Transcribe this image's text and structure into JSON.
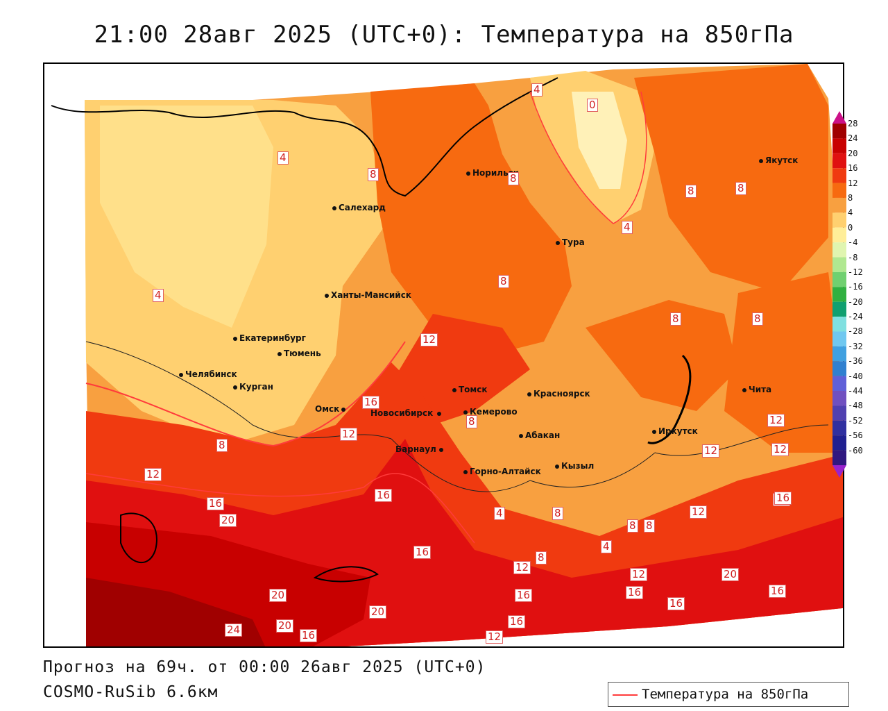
{
  "title": "21:00 28авг 2025 (UTC+0): Температура на 850гПа",
  "footer": {
    "forecast": "Прогноз на 69ч. от 00:00 26авг 2025 (UTC+0)",
    "model": "COSMO-RuSib 6.6км"
  },
  "legend": {
    "label": "Температура на 850гПа",
    "line_color": "#ff3b3b"
  },
  "colorbar": {
    "ticks": [
      "28",
      "24",
      "20",
      "16",
      "12",
      "8",
      "4",
      "0",
      "-4",
      "-8",
      "-12",
      "-16",
      "-20",
      "-24",
      "-28",
      "-32",
      "-36",
      "-40",
      "-44",
      "-48",
      "-52",
      "-56",
      "-60"
    ],
    "colors": [
      "#a00000",
      "#c80000",
      "#e01010",
      "#f03a10",
      "#f76a10",
      "#f8a040",
      "#ffd070",
      "#ffee99",
      "#e0f5b0",
      "#b0e890",
      "#70d070",
      "#30b040",
      "#10a070",
      "#80e0e0",
      "#70c8f0",
      "#40a0e0",
      "#3080d0",
      "#6060d8",
      "#7050c0",
      "#5040b0",
      "#3030a0",
      "#202090",
      "#301880"
    ],
    "top_arrow": "#cc1188",
    "bottom_arrow": "#9922cc"
  },
  "cities": [
    {
      "name": "Норильск"
    },
    {
      "name": "Якутск"
    },
    {
      "name": "Салехард"
    },
    {
      "name": "Тура"
    },
    {
      "name": "Ханты-Мансийск"
    },
    {
      "name": "Екатеринбург"
    },
    {
      "name": "Тюмень"
    },
    {
      "name": "Челябинск"
    },
    {
      "name": "Курган"
    },
    {
      "name": "Омск"
    },
    {
      "name": "Новосибирск"
    },
    {
      "name": "Томск"
    },
    {
      "name": "Кемерово"
    },
    {
      "name": "Красноярск"
    },
    {
      "name": "Абакан"
    },
    {
      "name": "Барнаул"
    },
    {
      "name": "Горно-Алтайск"
    },
    {
      "name": "Кызыл"
    },
    {
      "name": "Иркутск"
    },
    {
      "name": "Чита"
    }
  ],
  "contour_labels": [
    "4",
    "0",
    "8",
    "8",
    "8",
    "8",
    "4",
    "4",
    "4",
    "8",
    "8",
    "8",
    "8",
    "12",
    "8",
    "16",
    "12",
    "12",
    "12",
    "12",
    "16",
    "16",
    "20",
    "4",
    "8",
    "8",
    "8",
    "4",
    "8",
    "12",
    "16",
    "20",
    "12",
    "12",
    "16",
    "16",
    "16",
    "20",
    "24",
    "20",
    "16",
    "20",
    "16",
    "12",
    "16",
    "16",
    "12",
    "16"
  ]
}
